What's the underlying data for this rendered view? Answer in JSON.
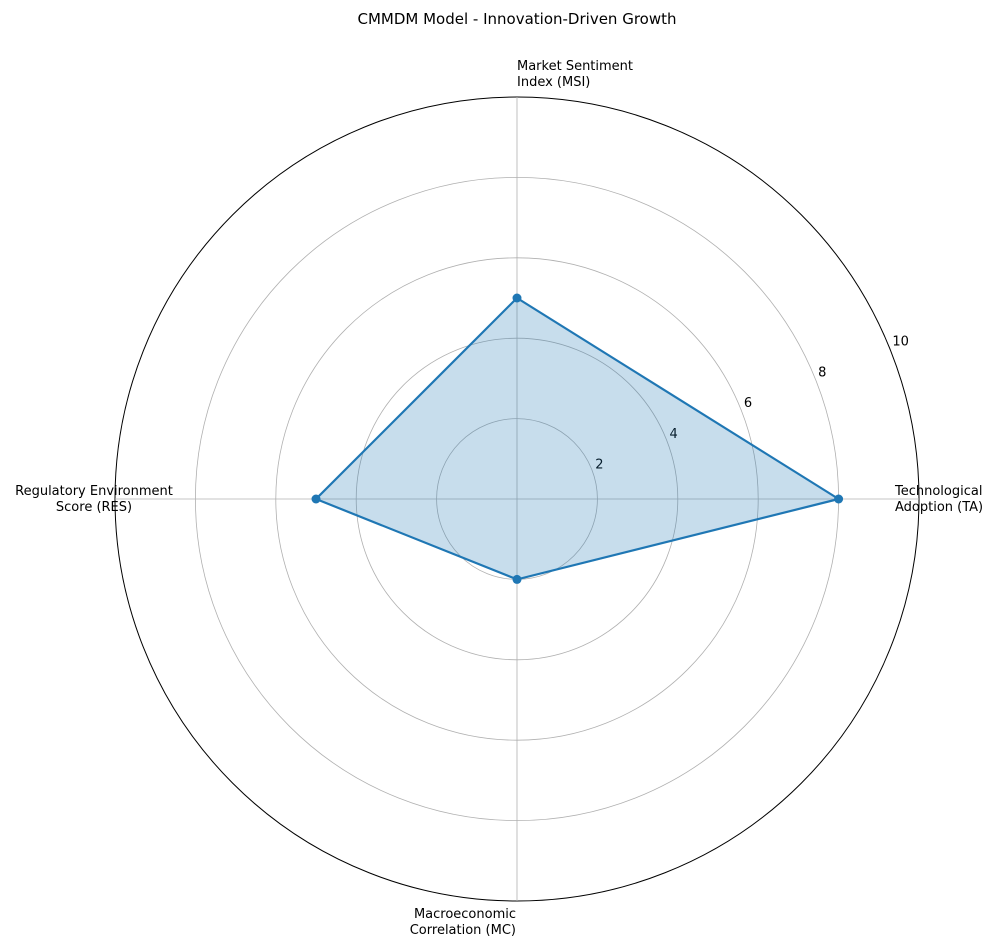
{
  "chart_data": {
    "type": "radar",
    "title": "CMMDM Model - Innovation-Driven Growth",
    "categories": [
      "Technological\nAdoption (TA)",
      "Market Sentiment\nIndex (MSI)",
      "Regulatory Environment\nScore (RES)",
      "Macroeconomic\nCorrelation (MC)"
    ],
    "values": [
      8,
      5,
      5,
      2
    ],
    "color": "#1f77b4",
    "rlim": [
      0,
      10
    ],
    "rticks": [
      2,
      4,
      6,
      8,
      10
    ],
    "grid": true
  }
}
